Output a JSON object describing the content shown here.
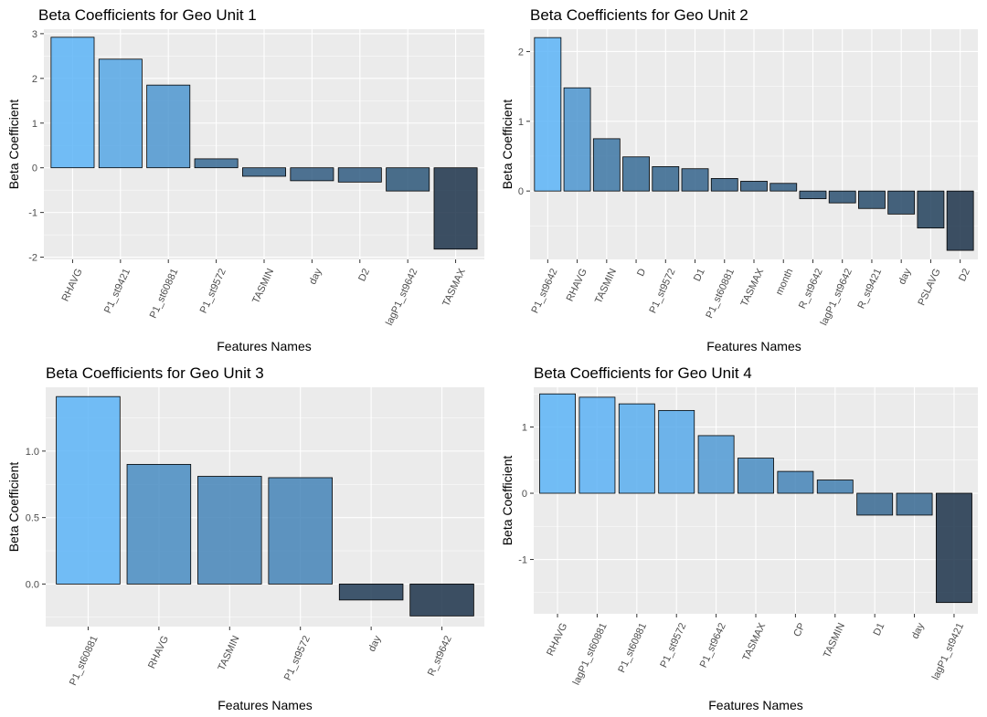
{
  "chart_data": [
    {
      "type": "bar",
      "title": "Beta Coefficients for Geo Unit 1",
      "xlabel": "Features Names",
      "ylabel": "Beta Coefficient",
      "categories": [
        "RHAVG",
        "P1_st9421",
        "P1_st60881",
        "P1_st9572",
        "TASMIN",
        "day",
        "D2",
        "lagP1_st9642",
        "TASMAX"
      ],
      "values": [
        2.92,
        2.43,
        1.85,
        0.2,
        -0.19,
        -0.29,
        -0.32,
        -0.52,
        -1.82
      ],
      "ylim": [
        -2.05,
        3.1
      ],
      "yticks": [
        -2,
        -1,
        0,
        1,
        2,
        3
      ],
      "yticklabels": [
        "-2",
        "-1",
        "0",
        "1",
        "2",
        "3"
      ],
      "grid": true,
      "legend": "none"
    },
    {
      "type": "bar",
      "title": "Beta Coefficients for Geo Unit 2",
      "xlabel": "Features Names",
      "ylabel": "Beta Coefficient",
      "categories": [
        "P1_st9642",
        "RHAVG",
        "TASMIN",
        "D",
        "P1_st9572",
        "D1",
        "P1_st60881",
        "TASMAX",
        "month",
        "R_st9642",
        "lagP1_st9642",
        "R_st9421",
        "day",
        "PSLAVG",
        "D2"
      ],
      "values": [
        2.2,
        1.48,
        0.75,
        0.49,
        0.35,
        0.32,
        0.18,
        0.14,
        0.11,
        -0.11,
        -0.17,
        -0.25,
        -0.33,
        -0.53,
        -0.85
      ],
      "ylim": [
        -0.98,
        2.32
      ],
      "yticks": [
        0,
        1,
        2
      ],
      "yticklabels": [
        "0",
        "1",
        "2"
      ],
      "grid": true,
      "legend": "none"
    },
    {
      "type": "bar",
      "title": "Beta Coefficients for Geo Unit 3",
      "xlabel": "Features Names",
      "ylabel": "Beta Coefficient",
      "categories": [
        "P1_st60881",
        "RHAVG",
        "TASMIN",
        "P1_st9572",
        "day",
        "R_st9642"
      ],
      "values": [
        1.41,
        0.9,
        0.81,
        0.8,
        -0.12,
        -0.24
      ],
      "ylim": [
        -0.32,
        1.48
      ],
      "yticks": [
        0,
        0.5,
        1.0
      ],
      "yticklabels": [
        "0.0",
        "0.5",
        "1.0"
      ],
      "grid": true,
      "legend": "none"
    },
    {
      "type": "bar",
      "title": "Beta Coefficients for Geo Unit 4",
      "xlabel": "Features Names",
      "ylabel": "Beta Coefficient",
      "categories": [
        "RHAVG",
        "lagP1_st60881",
        "P1_st60881",
        "P1_st9572",
        "P1_st9642",
        "TASMAX",
        "CP",
        "TASMIN",
        "D1",
        "day",
        "lagP1_st9421"
      ],
      "values": [
        1.5,
        1.45,
        1.35,
        1.25,
        0.87,
        0.53,
        0.33,
        0.2,
        -0.33,
        -0.33,
        -1.65
      ],
      "ylim": [
        -1.82,
        1.6
      ],
      "yticks": [
        -1,
        0,
        1
      ],
      "yticklabels": [
        "-1",
        "0",
        "1"
      ],
      "grid": true,
      "legend": "none"
    }
  ],
  "colors": {
    "high": "#56b1f7",
    "low": "#132b43",
    "panel_background": "#ebebeb",
    "gridline": "#ffffff"
  }
}
